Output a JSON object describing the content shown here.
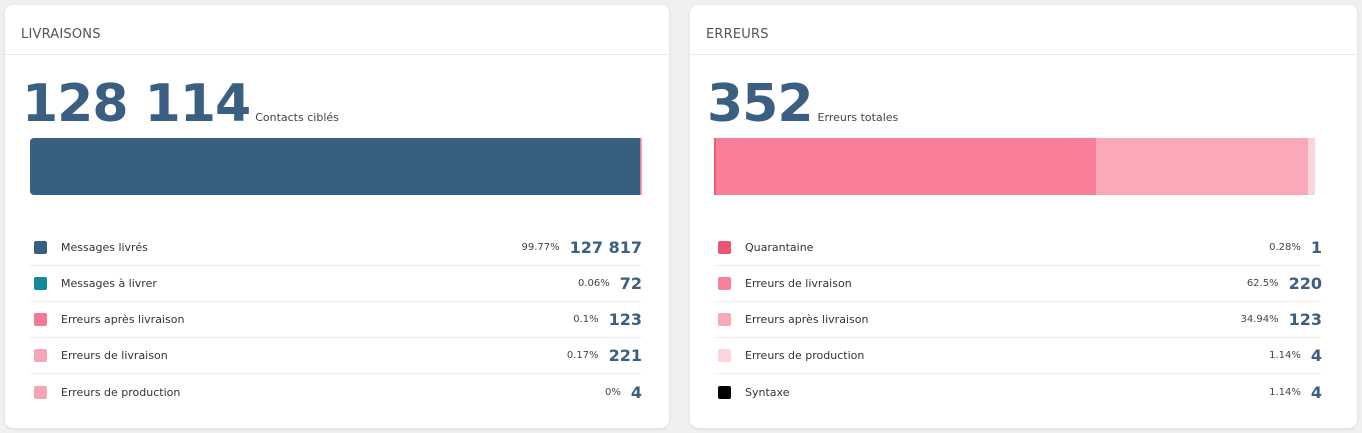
{
  "livraisons": {
    "title": "LIVRAISONS",
    "total": "128 114",
    "total_label": "Contacts ciblés",
    "bar": [
      {
        "fraction": 0.9977,
        "color": "#365f80"
      },
      {
        "fraction": 0.0006,
        "color": "#13899a"
      },
      {
        "fraction": 0.001,
        "color": "#f27a93"
      },
      {
        "fraction": 0.0017,
        "color": "#f4a6b6"
      },
      {
        "fraction": 0.0,
        "color": "#f4a6b6"
      }
    ],
    "rows": [
      {
        "label": "Messages livrés",
        "pct": "99.77%",
        "value": "127 817",
        "color": "#365f80"
      },
      {
        "label": "Messages à livrer",
        "pct": "0.06%",
        "value": "72",
        "color": "#13899a"
      },
      {
        "label": "Erreurs après livraison",
        "pct": "0.1%",
        "value": "123",
        "color": "#f27a93"
      },
      {
        "label": "Erreurs de livraison",
        "pct": "0.17%",
        "value": "221",
        "color": "#f4a6b6"
      },
      {
        "label": "Erreurs de production",
        "pct": "0%",
        "value": "4",
        "color": "#f4a6b6"
      }
    ]
  },
  "erreurs": {
    "title": "ERREURS",
    "total": "352",
    "total_label": "Erreurs totales",
    "bar": [
      {
        "fraction": 0.0028,
        "color": "#ef5a78"
      },
      {
        "fraction": 0.625,
        "color": "#f97f98"
      },
      {
        "fraction": 0.3494,
        "color": "#fba9b8"
      },
      {
        "fraction": 0.0114,
        "color": "#fcd3da"
      },
      {
        "fraction": 0.0114,
        "color": "#ffffff"
      }
    ],
    "rows": [
      {
        "label": "Quarantaine",
        "pct": "0.28%",
        "value": "1",
        "color": "#ec5474"
      },
      {
        "label": "Erreurs de livraison",
        "pct": "62.5%",
        "value": "220",
        "color": "#f7829a"
      },
      {
        "label": "Erreurs après livraison",
        "pct": "34.94%",
        "value": "123",
        "color": "#f9a9b8"
      },
      {
        "label": "Erreurs de production",
        "pct": "1.14%",
        "value": "4",
        "color": "#fbd5dc"
      },
      {
        "label": "Syntaxe",
        "pct": "1.14%",
        "value": "4",
        "color": "#000000"
      }
    ]
  }
}
